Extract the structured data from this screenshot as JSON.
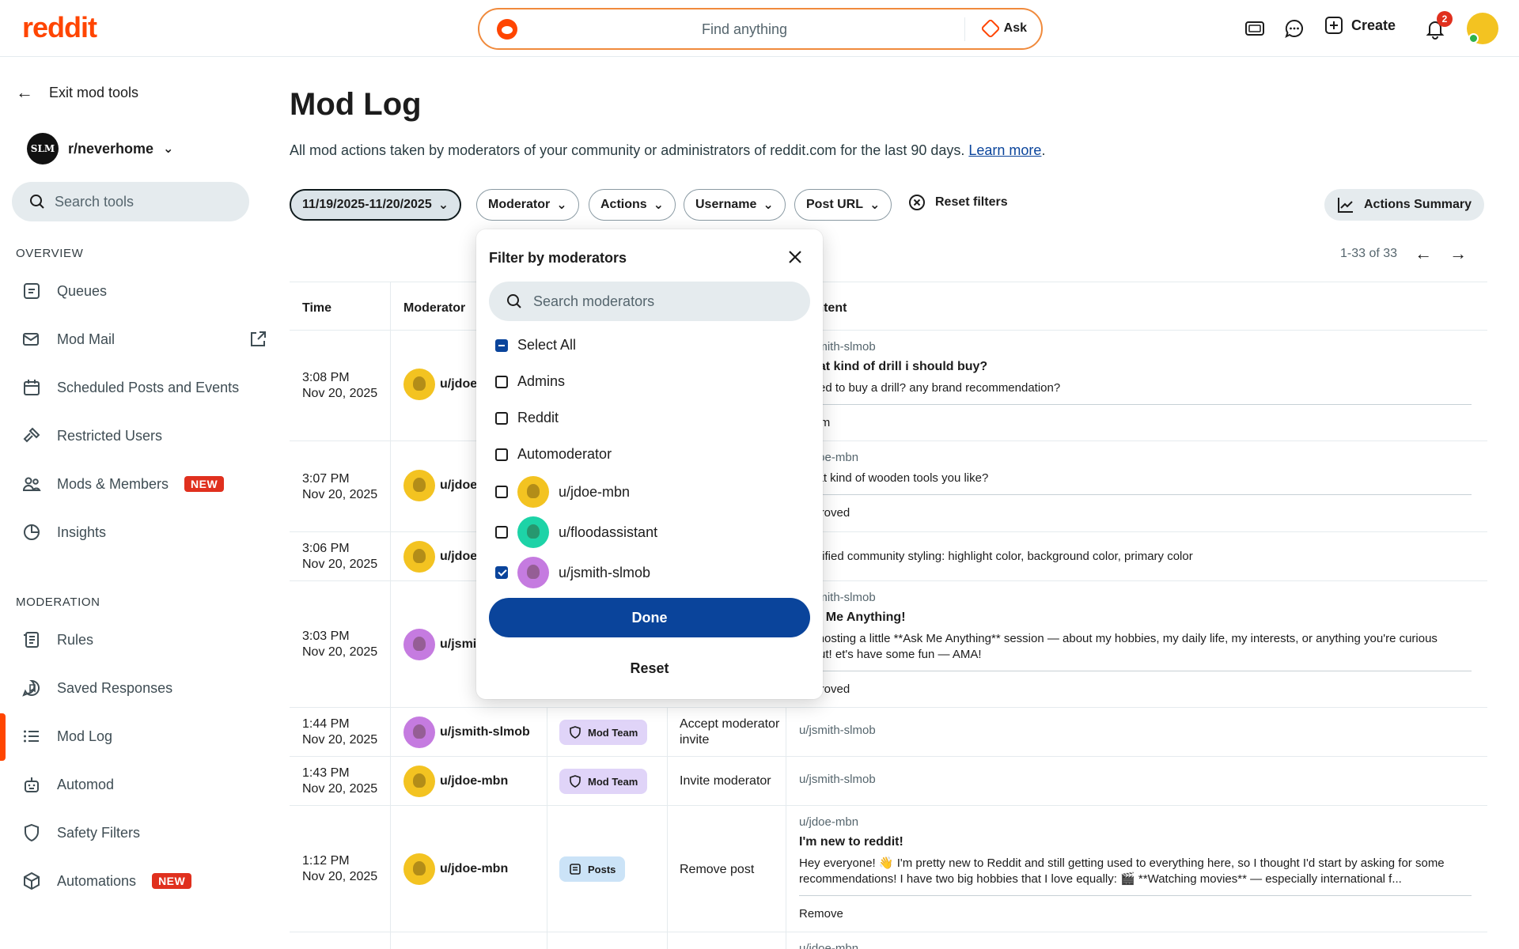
{
  "header": {
    "logo": "reddit",
    "search_placeholder": "Find anything",
    "ask_label": "Ask",
    "create_label": "Create",
    "notification_count": "2",
    "icons": [
      "ads-icon",
      "chat-icon",
      "plus-square-icon",
      "bell-icon"
    ]
  },
  "sidebar": {
    "exit_label": "Exit mod tools",
    "community": "r/neverhome",
    "community_icon_text": "SLM",
    "search_placeholder": "Search tools",
    "overview_title": "OVERVIEW",
    "overview_items": [
      {
        "label": "Queues",
        "icon": "queue-icon"
      },
      {
        "label": "Mod Mail",
        "icon": "modmail-icon"
      },
      {
        "label": "Scheduled Posts and Events",
        "icon": "calendar-icon"
      },
      {
        "label": "Restricted Users",
        "icon": "hammer-icon"
      },
      {
        "label": "Mods & Members",
        "icon": "members-icon",
        "badge": "NEW"
      },
      {
        "label": "Insights",
        "icon": "chart-pie-icon"
      }
    ],
    "moderation_title": "MODERATION",
    "moderation_items": [
      {
        "label": "Rules",
        "icon": "rules-icon"
      },
      {
        "label": "Saved Responses",
        "icon": "saved-response-icon"
      },
      {
        "label": "Mod Log",
        "icon": "list-icon",
        "active": true
      },
      {
        "label": "Automod",
        "icon": "bot-icon"
      },
      {
        "label": "Safety Filters",
        "icon": "shield-icon"
      },
      {
        "label": "Automations",
        "icon": "cube-icon",
        "badge": "NEW"
      }
    ]
  },
  "main": {
    "title": "Mod Log",
    "description": "All mod actions taken by moderators of your community or administrators of reddit.com for the last 90 days. ",
    "learn_more": "Learn more",
    "period": ".",
    "filters": {
      "date_range": "11/19/2025-11/20/2025",
      "moderator": "Moderator",
      "actions": "Actions",
      "username": "Username",
      "post_url": "Post URL",
      "reset": "Reset filters",
      "summary": "Actions Summary"
    },
    "pagination": "1-33 of 33",
    "table": {
      "headers": {
        "time": "Time",
        "moderator": "Moderator",
        "content": "Content"
      },
      "rows": [
        {
          "time": "3:08 PM",
          "date": "Nov 20, 2025",
          "moderator": "u/jdoe-mbn",
          "avatar": "yellow",
          "content_user": "u/jsmith-slmob",
          "content_title": "What kind of drill i should buy?",
          "content_body": "I need to buy a drill? any brand recommendation?",
          "content_footer": "Spam"
        },
        {
          "time": "3:07 PM",
          "date": "Nov 20, 2025",
          "moderator": "u/jdoe-mbn",
          "avatar": "yellow",
          "content_user": "u/jdoe-mbn",
          "content_title": "",
          "content_body": "What kind of wooden tools you like?",
          "content_footer": "Approved"
        },
        {
          "time": "3:06 PM",
          "date": "Nov 20, 2025",
          "moderator": "u/jdoe-mbn",
          "avatar": "yellow",
          "content_body": "Modified community styling: highlight color, background color, primary color"
        },
        {
          "time": "3:03 PM",
          "date": "Nov 20, 2025",
          "moderator": "u/jsmith-slmob",
          "avatar": "purple",
          "content_user": "u/jsmith-slmob",
          "content_title": "Ask Me Anything!",
          "content_body": "I'm hosting a little **Ask Me Anything** session — about my hobbies, my daily life, my interests, or anything you're curious about! et's have some fun — AMA!",
          "content_footer": "Approved"
        },
        {
          "time": "1:44 PM",
          "date": "Nov 20, 2025",
          "moderator": "u/jsmith-slmob",
          "avatar": "purple",
          "tag": "Mod Team",
          "action": "Accept moderator invite",
          "content_user": "u/jsmith-slmob"
        },
        {
          "time": "1:43 PM",
          "date": "Nov 20, 2025",
          "moderator": "u/jdoe-mbn",
          "avatar": "yellow",
          "tag": "Mod Team",
          "action": "Invite moderator",
          "content_user": "u/jsmith-slmob"
        },
        {
          "time": "1:12 PM",
          "date": "Nov 20, 2025",
          "moderator": "u/jdoe-mbn",
          "avatar": "yellow",
          "tag": "Posts",
          "action": "Remove post",
          "content_user": "u/jdoe-mbn",
          "content_title": "I'm new to reddit!",
          "content_body": "Hey everyone! 👋 I'm pretty new to Reddit and still getting used to everything here, so I thought I'd start by asking for some recommendations! I have two big hobbies that I love equally: 🎬 **Watching movies** — especially international f...",
          "content_footer": "Remove"
        },
        {
          "content_user": "u/jdoe-mbn"
        }
      ]
    }
  },
  "dropdown": {
    "title": "Filter by moderators",
    "search_placeholder": "Search moderators",
    "options": [
      {
        "label": "Select All",
        "state": "indeterminate"
      },
      {
        "label": "Admins",
        "state": "unchecked"
      },
      {
        "label": "Reddit",
        "state": "unchecked"
      },
      {
        "label": "Automoderator",
        "state": "unchecked"
      },
      {
        "label": "u/jdoe-mbn",
        "state": "unchecked",
        "avatar": "yellow"
      },
      {
        "label": "u/floodassistant",
        "state": "unchecked",
        "avatar": "teal"
      },
      {
        "label": "u/jsmith-slmob",
        "state": "checked",
        "avatar": "purple"
      }
    ],
    "done_label": "Done",
    "reset_label": "Reset"
  }
}
